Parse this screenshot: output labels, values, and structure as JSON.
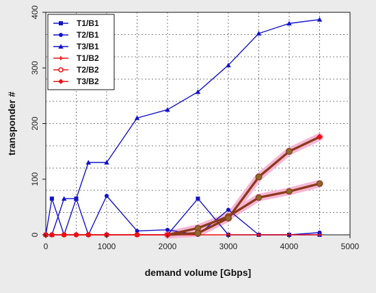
{
  "chart_data": {
    "type": "line",
    "xlabel": "demand volume [Gbps]",
    "ylabel": "transponder #",
    "xlim": [
      0,
      5000
    ],
    "ylim": [
      0,
      400
    ],
    "xticks": [
      "0",
      "1000",
      "2000",
      "3000",
      "4000",
      "5000"
    ],
    "yticks": [
      "0",
      "100",
      "200",
      "300",
      "400"
    ],
    "grid": true,
    "legend_position": "top-left",
    "series": [
      {
        "name": "T1/B1",
        "color": "#1111cc",
        "marker": "square",
        "points": [
          [
            0,
            0
          ],
          [
            100,
            65
          ],
          [
            300,
            0
          ],
          [
            500,
            65
          ],
          [
            700,
            0
          ],
          [
            1000,
            0
          ],
          [
            1500,
            0
          ],
          [
            2000,
            0
          ],
          [
            2500,
            65
          ],
          [
            3000,
            0
          ],
          [
            3500,
            0
          ],
          [
            4000,
            0
          ],
          [
            4500,
            0
          ]
        ]
      },
      {
        "name": "T2/B1",
        "color": "#1111cc",
        "marker": "circle",
        "points": [
          [
            0,
            0
          ],
          [
            100,
            0
          ],
          [
            300,
            0
          ],
          [
            500,
            0
          ],
          [
            700,
            0
          ],
          [
            1000,
            70
          ],
          [
            1500,
            7
          ],
          [
            2000,
            9
          ],
          [
            2500,
            0
          ],
          [
            3000,
            45
          ],
          [
            3500,
            0
          ],
          [
            4000,
            0
          ],
          [
            4500,
            4
          ]
        ]
      },
      {
        "name": "T3/B1",
        "color": "#1111cc",
        "marker": "triangle",
        "points": [
          [
            0,
            0
          ],
          [
            100,
            0
          ],
          [
            300,
            65
          ],
          [
            500,
            65
          ],
          [
            700,
            130
          ],
          [
            1000,
            130
          ],
          [
            1500,
            210
          ],
          [
            2000,
            225
          ],
          [
            2500,
            257
          ],
          [
            3000,
            305
          ],
          [
            3500,
            362
          ],
          [
            4000,
            380
          ],
          [
            4500,
            387
          ]
        ]
      },
      {
        "name": "T1/B2",
        "color": "#ee1111",
        "marker": "cross",
        "points": [
          [
            0,
            0
          ],
          [
            100,
            0
          ],
          [
            300,
            0
          ],
          [
            500,
            0
          ],
          [
            700,
            0
          ],
          [
            1000,
            0
          ],
          [
            1500,
            0
          ],
          [
            2000,
            0
          ],
          [
            2500,
            0
          ],
          [
            3000,
            0
          ],
          [
            3500,
            0
          ],
          [
            4000,
            0
          ],
          [
            4500,
            0
          ]
        ]
      },
      {
        "name": "T2/B2",
        "color": "#ee1111",
        "marker": "open-circle",
        "points": [
          [
            0,
            0
          ],
          [
            100,
            0
          ],
          [
            300,
            0
          ],
          [
            500,
            0
          ],
          [
            700,
            0
          ],
          [
            1000,
            0
          ],
          [
            1500,
            0
          ],
          [
            2000,
            0
          ],
          [
            2500,
            12
          ],
          [
            3000,
            33
          ],
          [
            3500,
            67
          ],
          [
            4000,
            78
          ],
          [
            4500,
            92
          ]
        ]
      },
      {
        "name": "T3/B2",
        "color": "#ee1111",
        "marker": "diamond",
        "points": [
          [
            0,
            0
          ],
          [
            100,
            0
          ],
          [
            300,
            0
          ],
          [
            500,
            0
          ],
          [
            700,
            0
          ],
          [
            1000,
            0
          ],
          [
            1500,
            0
          ],
          [
            2000,
            0
          ],
          [
            2500,
            3
          ],
          [
            3000,
            30
          ],
          [
            3500,
            104
          ],
          [
            4000,
            150
          ],
          [
            4500,
            176
          ]
        ]
      }
    ]
  }
}
